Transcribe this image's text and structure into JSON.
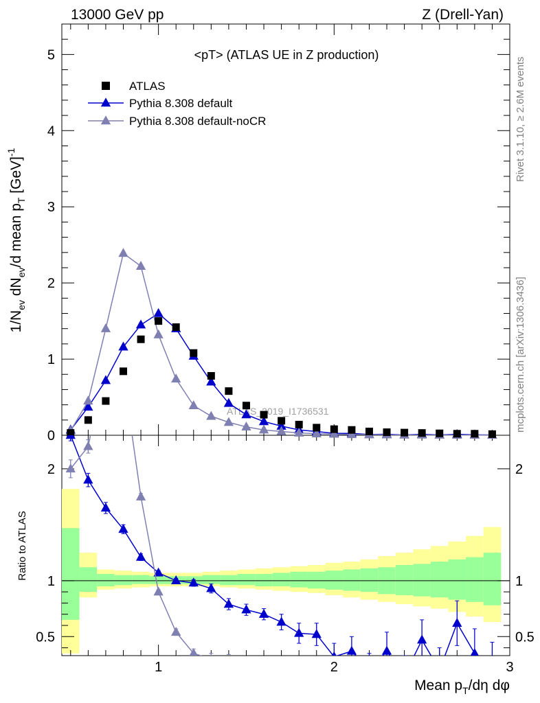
{
  "header": {
    "left": "13000 GeV pp",
    "right": "Z (Drell-Yan)"
  },
  "title": "<pT> (ATLAS UE in Z production)",
  "side_labels": {
    "rivet": "Rivet 3.1.10, ≥ 2.6M events",
    "mcplots": "mcplots.cern.ch [arXiv:1306.3436]"
  },
  "watermark": "ATLAS_2019_I1736531",
  "ylabel_main": "1/N_ev dN_ev/d mean p_T [GeV]^-1",
  "ylabel_ratio": "Ratio to ATLAS",
  "xlabel": "Mean p_T/dη dφ",
  "legend": [
    {
      "label": "ATLAS",
      "marker": "square",
      "color": "#000000"
    },
    {
      "label": "Pythia 8.308 default",
      "marker": "triangle",
      "color": "#0000cc"
    },
    {
      "label": "Pythia 8.308 default-noCR",
      "marker": "triangle",
      "color": "#7f7fb2"
    }
  ],
  "chart_data": {
    "type": "scatter",
    "x_range": [
      0.45,
      3.0
    ],
    "main_ylim": [
      0,
      5.4
    ],
    "ratio_ylim": [
      0.33,
      2.3
    ],
    "x_ticks": [
      "1",
      "2",
      "3"
    ],
    "main_y_ticks": [
      "0",
      "1",
      "2",
      "3",
      "4",
      "5"
    ],
    "ratio_y_ticks": [
      "0.5",
      "1",
      "2"
    ],
    "atlas": {
      "x": [
        0.5,
        0.6,
        0.7,
        0.8,
        0.9,
        1.0,
        1.1,
        1.2,
        1.3,
        1.4,
        1.5,
        1.6,
        1.7,
        1.8,
        1.9,
        2.0,
        2.1,
        2.2,
        2.3,
        2.4,
        2.5,
        2.6,
        2.7,
        2.8,
        2.9
      ],
      "y": [
        0.03,
        0.2,
        0.45,
        0.84,
        1.26,
        1.5,
        1.42,
        1.08,
        0.78,
        0.58,
        0.39,
        0.27,
        0.19,
        0.14,
        0.1,
        0.08,
        0.07,
        0.05,
        0.04,
        0.035,
        0.03,
        0.025,
        0.02,
        0.02,
        0.015
      ]
    },
    "series": [
      {
        "name": "Pythia 8.308 default",
        "color": "#0000cc",
        "x": [
          0.5,
          0.6,
          0.7,
          0.8,
          0.9,
          1.0,
          1.1,
          1.2,
          1.3,
          1.4,
          1.5,
          1.6,
          1.7,
          1.8,
          1.9,
          2.0,
          2.1,
          2.2,
          2.3,
          2.4,
          2.5,
          2.6,
          2.7,
          2.8,
          2.9
        ],
        "y": [
          0.07,
          0.37,
          0.72,
          1.16,
          1.45,
          1.6,
          1.4,
          1.04,
          0.7,
          0.42,
          0.27,
          0.18,
          0.12,
          0.07,
          0.05,
          0.025,
          0.025,
          0.01,
          0.013,
          0.005,
          0.013,
          0.005,
          0.012,
          0.006,
          0.003
        ],
        "ratio": [
          2.3,
          1.9,
          1.65,
          1.46,
          1.21,
          1.07,
          1.0,
          0.98,
          0.93,
          0.79,
          0.74,
          0.7,
          0.63,
          0.53,
          0.52,
          0.32,
          0.37,
          0.2,
          0.37,
          0.15,
          0.47,
          0.2,
          0.62,
          0.35,
          0.2
        ],
        "ratio_err": [
          0.05,
          0.06,
          0.05,
          0.04,
          0.03,
          0.02,
          0.02,
          0.03,
          0.04,
          0.05,
          0.05,
          0.05,
          0.07,
          0.09,
          0.1,
          0.12,
          0.13,
          0.15,
          0.17,
          0.18,
          0.18,
          0.2,
          0.2,
          0.22,
          0.25
        ]
      },
      {
        "name": "Pythia 8.308 default-noCR",
        "color": "#7f7fb2",
        "x": [
          0.5,
          0.6,
          0.7,
          0.8,
          0.9,
          1.0,
          1.1,
          1.2,
          1.3,
          1.4,
          1.5,
          1.6,
          1.7,
          1.8,
          1.9,
          2.0,
          2.1,
          2.2,
          2.3,
          2.4,
          2.5,
          2.6,
          2.7,
          2.8,
          2.9
        ],
        "y": [
          0.06,
          0.45,
          1.4,
          2.39,
          2.22,
          1.32,
          0.74,
          0.39,
          0.25,
          0.17,
          0.11,
          0.07,
          0.05,
          0.03,
          0.02,
          0.015,
          0.01,
          0.008,
          0.006,
          0.005,
          0.004,
          0.003,
          0.002,
          0.002,
          0.001
        ],
        "ratio": [
          2.0,
          2.2,
          3.0,
          2.85,
          1.75,
          0.9,
          0.54,
          0.35,
          0.3,
          0.28
        ],
        "ratio_x": [
          0.5,
          0.6,
          0.7,
          0.8,
          0.9,
          1.0,
          1.1,
          1.2,
          1.3,
          1.4
        ],
        "ratio_err": [
          0.08,
          0.06,
          0.05,
          0.04,
          0.03,
          0.02,
          0.03,
          0.04,
          0.05,
          0.06
        ]
      }
    ],
    "bands": {
      "x_edges": [
        0.45,
        0.55,
        0.65,
        0.75,
        0.85,
        0.95,
        1.05,
        1.15,
        1.25,
        1.35,
        1.45,
        1.55,
        1.65,
        1.75,
        1.85,
        1.95,
        2.05,
        2.15,
        2.25,
        2.35,
        2.45,
        2.55,
        2.65,
        2.75,
        2.85,
        2.95
      ],
      "yellow_hi": [
        1.82,
        1.25,
        1.1,
        1.09,
        1.08,
        1.07,
        1.07,
        1.07,
        1.08,
        1.09,
        1.1,
        1.11,
        1.12,
        1.13,
        1.14,
        1.16,
        1.17,
        1.19,
        1.22,
        1.25,
        1.28,
        1.31,
        1.35,
        1.4,
        1.48
      ],
      "yellow_lo": [
        0.35,
        0.85,
        0.92,
        0.93,
        0.94,
        0.95,
        0.95,
        0.95,
        0.95,
        0.94,
        0.93,
        0.92,
        0.91,
        0.9,
        0.89,
        0.87,
        0.85,
        0.83,
        0.81,
        0.79,
        0.77,
        0.75,
        0.72,
        0.68,
        0.63
      ],
      "green_hi": [
        1.47,
        1.12,
        1.06,
        1.05,
        1.05,
        1.04,
        1.04,
        1.04,
        1.05,
        1.05,
        1.06,
        1.06,
        1.07,
        1.08,
        1.08,
        1.09,
        1.1,
        1.11,
        1.12,
        1.14,
        1.15,
        1.17,
        1.19,
        1.21,
        1.25
      ],
      "green_lo": [
        0.65,
        0.9,
        0.95,
        0.96,
        0.97,
        0.97,
        0.97,
        0.97,
        0.97,
        0.96,
        0.96,
        0.95,
        0.95,
        0.94,
        0.93,
        0.92,
        0.91,
        0.9,
        0.88,
        0.87,
        0.86,
        0.85,
        0.83,
        0.81,
        0.78
      ]
    }
  }
}
